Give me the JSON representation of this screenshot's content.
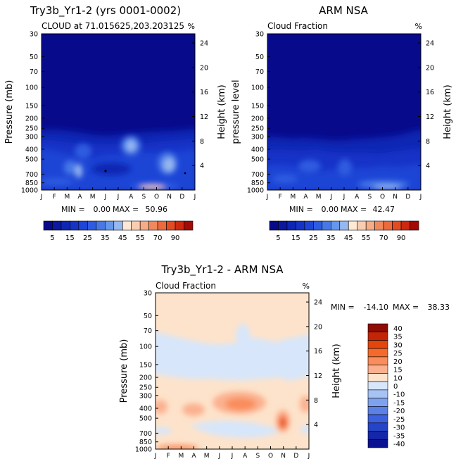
{
  "chart_data": [
    {
      "type": "heatmap",
      "title": "Try3b_Yr1-2 (yrs 0001-0002)",
      "subtitle": "CLOUD at 71.015625,203.203125",
      "units": "%",
      "ylabel": "Pressure (mb)",
      "ylabel_right": "Height (km)",
      "x_ticks": [
        "J",
        "F",
        "M",
        "A",
        "M",
        "J",
        "J",
        "A",
        "S",
        "O",
        "N",
        "D",
        "J"
      ],
      "y_ticks": [
        "30",
        "50",
        "70",
        "100",
        "150",
        "200",
        "250",
        "300",
        "400",
        "500",
        "700",
        "850",
        "1000"
      ],
      "y_ticks_right": [
        "24",
        "20",
        "16",
        "12",
        "8",
        "4"
      ],
      "min_label": "MIN =",
      "min_value": "0.00",
      "max_label": "MAX =",
      "max_value": "50.96",
      "colorbar_ticks": [
        "5",
        "15",
        "25",
        "35",
        "45",
        "55",
        "70",
        "90"
      ],
      "colorbar_levels": [
        0,
        5,
        10,
        15,
        20,
        25,
        30,
        35,
        40,
        45,
        50,
        55,
        60,
        70,
        80,
        90,
        100
      ]
    },
    {
      "type": "heatmap",
      "title": "ARM NSA",
      "subtitle": "Cloud Fraction",
      "units": "%",
      "ylabel": "pressure level",
      "ylabel_right": "Height (km)",
      "x_ticks": [
        "J",
        "F",
        "M",
        "A",
        "M",
        "J",
        "J",
        "A",
        "S",
        "O",
        "N",
        "D",
        "J"
      ],
      "y_ticks": [
        "30",
        "50",
        "70",
        "100",
        "150",
        "200",
        "250",
        "300",
        "400",
        "500",
        "700",
        "850",
        "1000"
      ],
      "y_ticks_right": [
        "24",
        "20",
        "16",
        "12",
        "8",
        "4"
      ],
      "min_label": "MIN =",
      "min_value": "0.00",
      "max_label": "MAX =",
      "max_value": "42.47",
      "colorbar_ticks": [
        "5",
        "15",
        "25",
        "35",
        "45",
        "55",
        "70",
        "90"
      ],
      "colorbar_levels": [
        0,
        5,
        10,
        15,
        20,
        25,
        30,
        35,
        40,
        45,
        50,
        55,
        60,
        70,
        80,
        90,
        100
      ]
    },
    {
      "type": "heatmap",
      "title": "Try3b_Yr1-2 - ARM NSA",
      "subtitle": "Cloud Fraction",
      "units": "%",
      "ylabel": "Pressure (mb)",
      "ylabel_right": "Height (km)",
      "x_ticks": [
        "J",
        "F",
        "M",
        "A",
        "M",
        "J",
        "J",
        "A",
        "S",
        "O",
        "N",
        "D",
        "J"
      ],
      "y_ticks": [
        "30",
        "50",
        "70",
        "100",
        "150",
        "200",
        "250",
        "300",
        "400",
        "500",
        "700",
        "850",
        "1000"
      ],
      "y_ticks_right": [
        "24",
        "20",
        "16",
        "12",
        "8",
        "4"
      ],
      "min_label": "MIN =",
      "min_value": "-14.10",
      "max_label": "MAX =",
      "max_value": "38.33",
      "colorbar_ticks": [
        "40",
        "35",
        "30",
        "25",
        "20",
        "15",
        "10",
        "0",
        "-10",
        "-15",
        "-20",
        "-25",
        "-30",
        "-35",
        "-40"
      ]
    }
  ],
  "colors": {
    "seq": [
      "#080a8c",
      "#0b189f",
      "#0e26b4",
      "#1533c7",
      "#1e45d6",
      "#2e5ce0",
      "#4778e6",
      "#6797ec",
      "#95b8f1",
      "#ffe9d4",
      "#fbcdb0",
      "#f6ac86",
      "#f2895c",
      "#ec6a3c",
      "#e54b21",
      "#cf2810",
      "#a30a05"
    ],
    "div": [
      "#8e0c04",
      "#c42507",
      "#e4450c",
      "#f46a2c",
      "#f98d5b",
      "#fbb18f",
      "#fde3cb",
      "#d7e6fa",
      "#a7c3f4",
      "#7fa2ee",
      "#5b80e6",
      "#3d61de",
      "#2544c8",
      "#1427a8",
      "#0a1290"
    ]
  }
}
